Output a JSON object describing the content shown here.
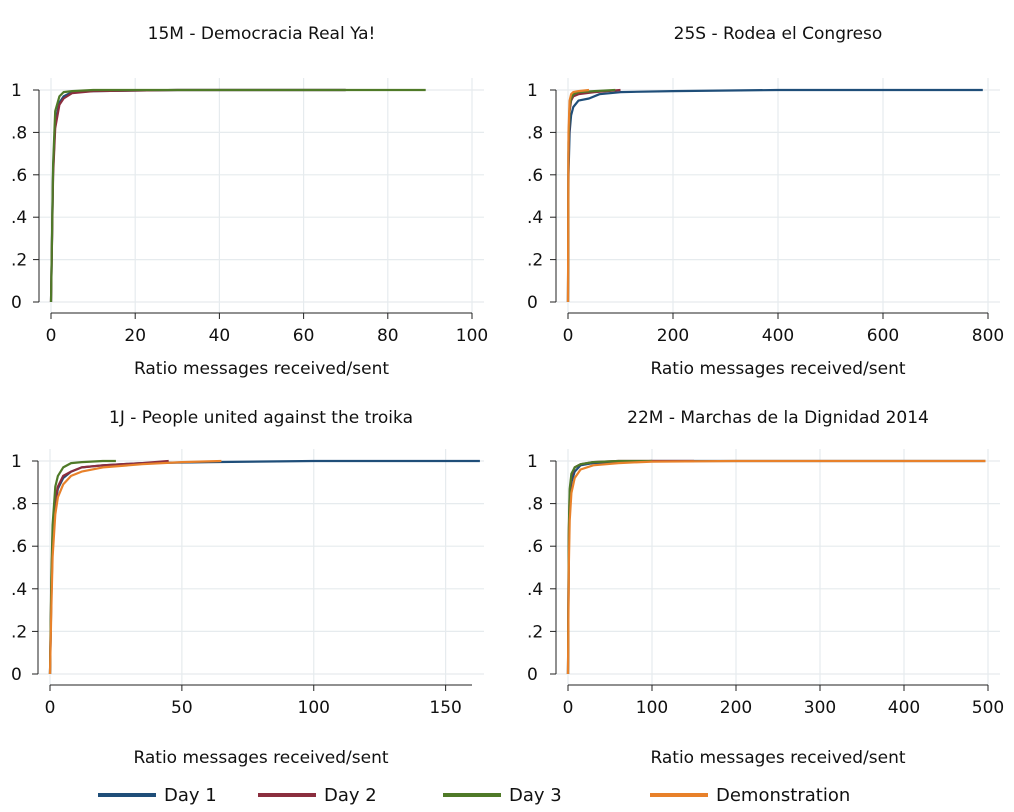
{
  "legend": [
    {
      "label": "Day 1",
      "color": "#1f4e79"
    },
    {
      "label": "Day 2",
      "color": "#8b2e3e"
    },
    {
      "label": "Day 3",
      "color": "#4f7a28"
    },
    {
      "label": "Demonstration",
      "color": "#e8812a"
    }
  ],
  "chart_data": [
    {
      "type": "line",
      "title": "15M - Democracia Real Ya!",
      "xlabel": "Ratio messages received/sent",
      "ylabel": "",
      "xlim": [
        0,
        100
      ],
      "ylim": [
        0,
        1
      ],
      "xticks": [
        0,
        20,
        40,
        60,
        80,
        100
      ],
      "xtick_labels": [
        "0",
        "20",
        "40",
        "60",
        "80",
        "100"
      ],
      "yticks": [
        0,
        0.2,
        0.4,
        0.6,
        0.8,
        1
      ],
      "ytick_labels": [
        "0",
        ".2",
        ".4",
        ".6",
        ".8",
        "1"
      ],
      "grid": true,
      "series": [
        {
          "name": "Day 1",
          "color": "#1f4e79",
          "x": [
            0,
            0.5,
            1,
            2,
            3,
            5,
            10,
            30,
            70
          ],
          "y": [
            0,
            0.62,
            0.85,
            0.94,
            0.97,
            0.99,
            0.995,
            1,
            1
          ]
        },
        {
          "name": "Day 2",
          "color": "#8b2e3e",
          "x": [
            0,
            0.5,
            1,
            2,
            3,
            5,
            10,
            30,
            70
          ],
          "y": [
            0,
            0.6,
            0.82,
            0.93,
            0.96,
            0.985,
            0.995,
            1,
            1
          ]
        },
        {
          "name": "Day 3",
          "color": "#4f7a28",
          "x": [
            0,
            0.5,
            1,
            2,
            3,
            5,
            10,
            30,
            89
          ],
          "y": [
            0,
            0.65,
            0.9,
            0.97,
            0.99,
            0.995,
            1,
            1,
            1
          ]
        }
      ]
    },
    {
      "type": "line",
      "title": "25S - Rodea el Congreso",
      "xlabel": "Ratio messages received/sent",
      "ylabel": "",
      "xlim": [
        0,
        800
      ],
      "ylim": [
        0,
        1
      ],
      "xticks": [
        0,
        200,
        400,
        600,
        800
      ],
      "xtick_labels": [
        "0",
        "200",
        "400",
        "600",
        "800"
      ],
      "yticks": [
        0,
        0.2,
        0.4,
        0.6,
        0.8,
        1
      ],
      "ytick_labels": [
        "0",
        ".2",
        ".4",
        ".6",
        ".8",
        "1"
      ],
      "grid": true,
      "series": [
        {
          "name": "Day 1",
          "color": "#1f4e79",
          "x": [
            0,
            1,
            3,
            6,
            10,
            20,
            40,
            60,
            100,
            200,
            400,
            790
          ],
          "y": [
            0,
            0.6,
            0.8,
            0.88,
            0.92,
            0.95,
            0.96,
            0.98,
            0.99,
            0.995,
            1,
            1
          ]
        },
        {
          "name": "Day 2",
          "color": "#8b2e3e",
          "x": [
            0,
            1,
            3,
            6,
            10,
            20,
            50,
            100
          ],
          "y": [
            0,
            0.7,
            0.9,
            0.95,
            0.97,
            0.98,
            0.99,
            1
          ]
        },
        {
          "name": "Day 3",
          "color": "#4f7a28",
          "x": [
            0,
            1,
            3,
            6,
            10,
            20,
            50,
            90
          ],
          "y": [
            0,
            0.75,
            0.92,
            0.96,
            0.98,
            0.99,
            0.995,
            1
          ]
        },
        {
          "name": "Demonstration",
          "color": "#e8812a",
          "x": [
            0,
            1,
            3,
            6,
            10,
            20,
            40
          ],
          "y": [
            0,
            0.8,
            0.95,
            0.98,
            0.99,
            0.995,
            1
          ]
        }
      ]
    },
    {
      "type": "line",
      "title": "1J - People united against the troika",
      "xlabel": "Ratio messages received/sent",
      "ylabel": "",
      "xlim": [
        0,
        160
      ],
      "ylim": [
        0,
        1
      ],
      "xticks": [
        0,
        50,
        100,
        150
      ],
      "xtick_labels": [
        "0",
        "50",
        "100",
        "150"
      ],
      "yticks": [
        0,
        0.2,
        0.4,
        0.6,
        0.8,
        1
      ],
      "ytick_labels": [
        "0",
        ".2",
        ".4",
        ".6",
        ".8",
        "1"
      ],
      "grid": true,
      "series": [
        {
          "name": "Day 1",
          "color": "#1f4e79",
          "x": [
            0,
            0.5,
            1,
            2,
            3,
            5,
            8,
            12,
            20,
            35,
            60,
            100,
            163
          ],
          "y": [
            0,
            0.35,
            0.6,
            0.8,
            0.87,
            0.92,
            0.95,
            0.97,
            0.98,
            0.99,
            0.995,
            1,
            1
          ]
        },
        {
          "name": "Day 2",
          "color": "#8b2e3e",
          "x": [
            0,
            0.5,
            1,
            2,
            3,
            5,
            8,
            12,
            20,
            35,
            45
          ],
          "y": [
            0,
            0.4,
            0.65,
            0.82,
            0.88,
            0.93,
            0.95,
            0.97,
            0.98,
            0.99,
            1
          ]
        },
        {
          "name": "Day 3",
          "color": "#4f7a28",
          "x": [
            0,
            0.5,
            1,
            2,
            3,
            5,
            8,
            12,
            20,
            25
          ],
          "y": [
            0,
            0.45,
            0.7,
            0.88,
            0.93,
            0.97,
            0.99,
            0.995,
            1,
            1
          ]
        },
        {
          "name": "Demonstration",
          "color": "#e8812a",
          "x": [
            0,
            0.5,
            1,
            2,
            3,
            5,
            8,
            12,
            20,
            35,
            50,
            65
          ],
          "y": [
            0,
            0.3,
            0.55,
            0.75,
            0.83,
            0.89,
            0.93,
            0.95,
            0.97,
            0.985,
            0.995,
            1
          ]
        }
      ]
    },
    {
      "type": "line",
      "title": "22M - Marchas de la Dignidad 2014",
      "xlabel": "Ratio messages received/sent",
      "ylabel": "",
      "xlim": [
        0,
        500
      ],
      "ylim": [
        0,
        1
      ],
      "xticks": [
        0,
        100,
        200,
        300,
        400,
        500
      ],
      "xtick_labels": [
        "0",
        "100",
        "200",
        "300",
        "400",
        "500"
      ],
      "yticks": [
        0,
        0.2,
        0.4,
        0.6,
        0.8,
        1
      ],
      "ytick_labels": [
        "0",
        ".2",
        ".4",
        ".6",
        ".8",
        "1"
      ],
      "grid": true,
      "series": [
        {
          "name": "Day 1",
          "color": "#1f4e79",
          "x": [
            0,
            1,
            2,
            4,
            8,
            15,
            30,
            60,
            100,
            200,
            300,
            497
          ],
          "y": [
            0,
            0.6,
            0.8,
            0.9,
            0.95,
            0.98,
            0.99,
            0.995,
            1,
            1,
            1,
            1
          ]
        },
        {
          "name": "Day 2",
          "color": "#8b2e3e",
          "x": [
            0,
            1,
            2,
            4,
            8,
            15,
            30,
            60,
            100,
            150
          ],
          "y": [
            0,
            0.65,
            0.85,
            0.93,
            0.97,
            0.985,
            0.995,
            1,
            1,
            1
          ]
        },
        {
          "name": "Day 3",
          "color": "#4f7a28",
          "x": [
            0,
            1,
            2,
            4,
            8,
            15,
            30,
            60,
            100
          ],
          "y": [
            0,
            0.68,
            0.87,
            0.94,
            0.97,
            0.985,
            0.995,
            1,
            1
          ]
        },
        {
          "name": "Demonstration",
          "color": "#e8812a",
          "x": [
            0,
            1,
            2,
            4,
            8,
            15,
            30,
            60,
            100,
            200,
            300,
            400,
            497
          ],
          "y": [
            0,
            0.5,
            0.72,
            0.85,
            0.92,
            0.96,
            0.98,
            0.99,
            0.997,
            1,
            1,
            1,
            1
          ]
        }
      ]
    }
  ]
}
